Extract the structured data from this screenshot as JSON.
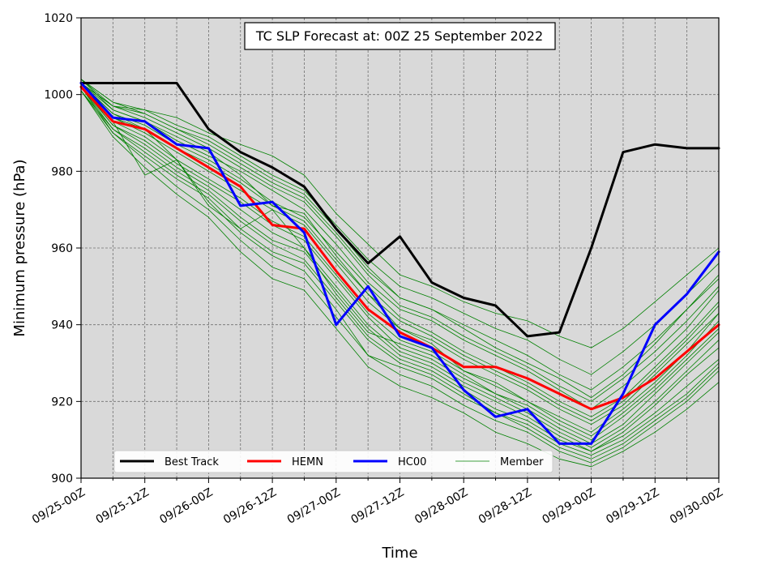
{
  "chart_data": {
    "type": "line",
    "title": "TC SLP Forecast at: 00Z 25 September 2022",
    "xlabel": "Time",
    "ylabel": "Minimum pressure (hPa)",
    "ylim": [
      900,
      1020
    ],
    "yticks": [
      900,
      920,
      940,
      960,
      980,
      1000,
      1020
    ],
    "xticks": [
      "09/25-00Z",
      "09/25-12Z",
      "09/26-00Z",
      "09/26-12Z",
      "09/27-00Z",
      "09/27-12Z",
      "09/28-00Z",
      "09/28-12Z",
      "09/29-00Z",
      "09/29-12Z",
      "09/30-00Z"
    ],
    "x_hours": [
      0,
      6,
      12,
      18,
      24,
      30,
      36,
      42,
      48,
      54,
      60,
      66,
      72,
      78,
      84,
      90,
      96,
      102,
      108,
      114,
      120
    ],
    "grid": true,
    "legend_position": "lower-center",
    "background": "#d9d9d9",
    "series": [
      {
        "name": "Best Track",
        "color": "#000000",
        "width": 3,
        "values": [
          1003,
          1003,
          1003,
          1003,
          991,
          985,
          981,
          976,
          965,
          956,
          963,
          951,
          947,
          945,
          937,
          938,
          960,
          985,
          987,
          986,
          986
        ]
      },
      {
        "name": "HEMN",
        "color": "#ff0000",
        "width": 3,
        "values": [
          1002,
          993,
          991,
          986,
          981,
          976,
          966,
          965,
          954,
          944,
          938,
          934,
          929,
          929,
          926,
          922,
          918,
          921,
          926,
          933,
          940
        ]
      },
      {
        "name": "HC00",
        "color": "#0000ff",
        "width": 3,
        "values": [
          1003,
          994,
          993,
          987,
          986,
          971,
          972,
          964,
          940,
          950,
          937,
          934,
          923,
          916,
          918,
          909,
          909,
          922,
          940,
          948,
          959
        ]
      }
    ],
    "members": {
      "name": "Member",
      "color": "#008000",
      "width": 0.8,
      "values": [
        [
          1004,
          996,
          993,
          989,
          985,
          979,
          971,
          969,
          958,
          948,
          939,
          935,
          928,
          925,
          920,
          916,
          912,
          918,
          925,
          933,
          943
        ],
        [
          1002,
          992,
          988,
          982,
          977,
          972,
          966,
          962,
          952,
          942,
          934,
          931,
          926,
          922,
          918,
          913,
          909,
          914,
          922,
          930,
          938
        ],
        [
          1003,
          997,
          995,
          991,
          988,
          983,
          978,
          974,
          965,
          955,
          947,
          944,
          939,
          934,
          930,
          926,
          921,
          927,
          935,
          944,
          952
        ],
        [
          1001,
          990,
          984,
          978,
          973,
          965,
          959,
          956,
          946,
          936,
          930,
          927,
          922,
          917,
          914,
          909,
          906,
          910,
          916,
          922,
          930
        ],
        [
          1003,
          995,
          992,
          987,
          983,
          978,
          972,
          968,
          959,
          950,
          942,
          938,
          933,
          929,
          925,
          920,
          916,
          921,
          929,
          937,
          946
        ],
        [
          1002,
          993,
          989,
          983,
          978,
          973,
          967,
          963,
          953,
          943,
          936,
          933,
          928,
          924,
          920,
          915,
          911,
          917,
          924,
          932,
          941
        ],
        [
          1004,
          998,
          996,
          992,
          989,
          984,
          979,
          975,
          966,
          957,
          950,
          947,
          943,
          939,
          936,
          931,
          927,
          933,
          940,
          948,
          956
        ],
        [
          1001,
          989,
          981,
          974,
          968,
          959,
          952,
          949,
          939,
          929,
          924,
          921,
          917,
          912,
          909,
          905,
          903,
          907,
          912,
          918,
          925
        ],
        [
          1003,
          996,
          993,
          988,
          984,
          980,
          975,
          970,
          961,
          951,
          944,
          941,
          936,
          932,
          928,
          923,
          918,
          924,
          931,
          939,
          949
        ],
        [
          1002,
          991,
          986,
          980,
          975,
          968,
          962,
          959,
          949,
          939,
          932,
          929,
          924,
          920,
          916,
          911,
          907,
          912,
          919,
          927,
          934
        ],
        [
          1003,
          994,
          990,
          985,
          980,
          975,
          970,
          966,
          956,
          946,
          939,
          936,
          931,
          927,
          923,
          918,
          914,
          919,
          927,
          935,
          943
        ],
        [
          1002,
          992,
          987,
          981,
          976,
          970,
          964,
          960,
          950,
          940,
          933,
          930,
          925,
          921,
          917,
          912,
          908,
          913,
          920,
          928,
          936
        ],
        [
          1004,
          997,
          994,
          990,
          986,
          981,
          976,
          972,
          963,
          953,
          945,
          942,
          937,
          933,
          929,
          924,
          920,
          926,
          933,
          941,
          950
        ],
        [
          1001,
          991,
          985,
          979,
          974,
          967,
          961,
          957,
          947,
          937,
          931,
          928,
          923,
          918,
          915,
          910,
          907,
          911,
          917,
          924,
          931
        ],
        [
          1003,
          995,
          991,
          986,
          982,
          977,
          971,
          967,
          957,
          948,
          941,
          937,
          932,
          928,
          924,
          919,
          915,
          920,
          928,
          936,
          945
        ],
        [
          1002,
          990,
          983,
          976,
          970,
          962,
          955,
          952,
          942,
          932,
          927,
          924,
          919,
          915,
          912,
          907,
          904,
          908,
          914,
          920,
          928
        ],
        [
          1004,
          998,
          995,
          991,
          987,
          982,
          977,
          973,
          964,
          954,
          947,
          944,
          940,
          936,
          932,
          927,
          923,
          929,
          936,
          944,
          953
        ],
        [
          1003,
          993,
          979,
          983,
          972,
          964,
          958,
          954,
          944,
          932,
          929,
          926,
          921,
          917,
          913,
          908,
          905,
          909,
          915,
          921,
          929
        ],
        [
          1002,
          994,
          991,
          983,
          971,
          965,
          970,
          960,
          948,
          938,
          935,
          932,
          927,
          922,
          919,
          914,
          910,
          916,
          923,
          931,
          939
        ],
        [
          1003,
          997,
          996,
          994,
          990,
          987,
          984,
          979,
          969,
          961,
          953,
          950,
          946,
          943,
          941,
          937,
          934,
          939,
          946,
          953,
          960
        ]
      ]
    }
  }
}
